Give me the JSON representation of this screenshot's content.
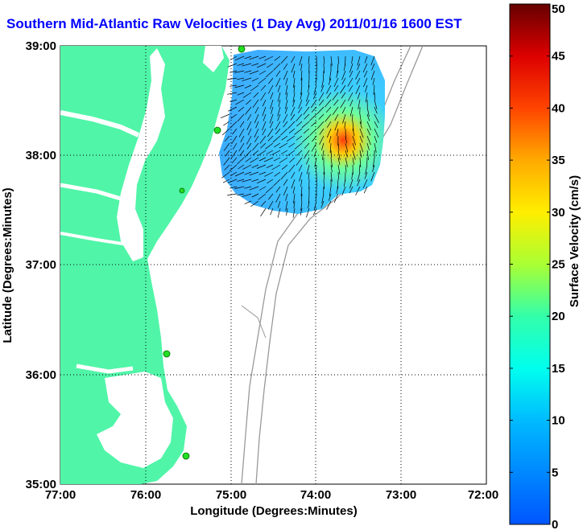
{
  "title": "Southern Mid-Atlantic Raw Velocities (1 Day Avg) 2011/01/16 1600 EST",
  "x_axis": {
    "label": "Longitude (Degrees:Minutes)",
    "ticks": [
      "77:00",
      "76:00",
      "75:00",
      "74:00",
      "73:00",
      "72:00"
    ]
  },
  "y_axis": {
    "label": "Latitude (Degrees:Minutes)",
    "ticks": [
      "39:00",
      "38:00",
      "37:00",
      "36:00",
      "35:00"
    ]
  },
  "colorbar": {
    "label": "Surface Velocity (cm/s)",
    "min": 0,
    "max": 50,
    "ticks": [
      "50",
      "45",
      "40",
      "35",
      "30",
      "25",
      "20",
      "15",
      "10",
      "5",
      "0"
    ]
  },
  "colors": {
    "land": "#50f5a8",
    "title": "#0000ff",
    "station": "#22dd22"
  }
}
